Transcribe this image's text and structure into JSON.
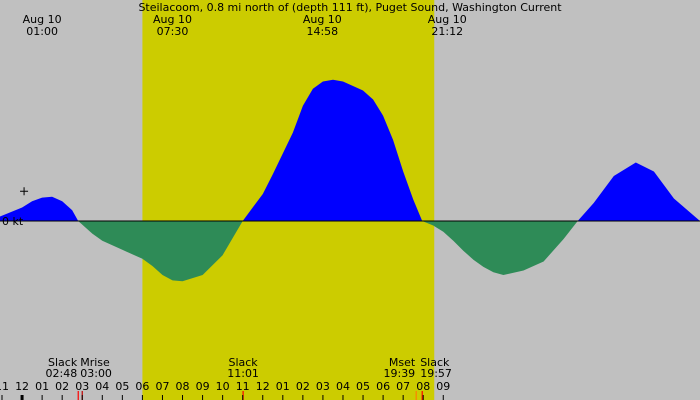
{
  "chart_data": {
    "type": "area",
    "title": "Steilacoom, 0.8 mi north of (depth 111 ft), Puget Sound, Washington Current",
    "ylabel": "0 kt",
    "x_range_hours": [
      -1.1,
      33.8
    ],
    "daylight_hours": [
      6.0,
      20.55
    ],
    "series": [
      {
        "values_hours": [
          -1.1,
          0.0,
          0.5,
          1.0,
          1.5,
          2.0,
          2.5,
          2.8,
          3.5,
          4.0,
          5.0,
          6.0,
          6.5,
          7.0,
          7.5,
          8.0,
          9.0,
          10.0,
          11.0,
          11.5,
          12.0,
          12.5,
          13.0,
          13.5,
          14.0,
          14.5,
          15.0,
          15.5,
          16.0,
          16.5,
          17.0,
          17.5,
          18.0,
          18.5,
          19.0,
          19.5,
          19.95,
          20.5,
          21.0,
          21.5,
          22.0,
          22.5,
          23.0,
          23.5,
          24.0,
          25.0,
          26.0,
          27.0,
          27.7,
          28.5,
          29.5,
          30.6,
          31.5,
          32.5,
          33.8
        ],
        "values": [
          0.05,
          0.15,
          0.22,
          0.26,
          0.27,
          0.22,
          0.12,
          0.0,
          -0.14,
          -0.22,
          -0.32,
          -0.42,
          -0.5,
          -0.6,
          -0.66,
          -0.67,
          -0.6,
          -0.38,
          0.0,
          0.15,
          0.3,
          0.52,
          0.75,
          0.98,
          1.28,
          1.47,
          1.55,
          1.57,
          1.55,
          1.5,
          1.45,
          1.35,
          1.17,
          0.9,
          0.55,
          0.24,
          0.0,
          -0.05,
          -0.12,
          -0.22,
          -0.33,
          -0.43,
          -0.51,
          -0.57,
          -0.6,
          -0.55,
          -0.45,
          -0.2,
          0.0,
          0.2,
          0.5,
          0.65,
          0.55,
          0.25,
          0.0
        ]
      }
    ],
    "top_labels": [
      {
        "hour": 1.0,
        "date": "Aug 10",
        "time": "01:00"
      },
      {
        "hour": 7.5,
        "date": "Aug 10",
        "time": "07:30"
      },
      {
        "hour": 14.97,
        "date": "Aug 10",
        "time": "14:58"
      },
      {
        "hour": 21.2,
        "date": "Aug 10",
        "time": "21:12"
      }
    ],
    "events": [
      {
        "hour": 2.8,
        "name": "Slack",
        "time": "02:48",
        "color": "#ff0000"
      },
      {
        "hour": 3.0,
        "name": "Mrise",
        "time": "03:00",
        "color": "#c00000"
      },
      {
        "hour": 11.02,
        "name": "Slack",
        "time": "11:01",
        "color": "#ff0000"
      },
      {
        "hour": 19.65,
        "name": "Mset",
        "time": "19:39",
        "color": "#ff8000"
      },
      {
        "hour": 19.95,
        "name": "Slack",
        "time": "19:57",
        "color": "#ff0000"
      }
    ],
    "x_ticks": [
      {
        "hour": -1.0,
        "label": "11"
      },
      {
        "hour": 0.0,
        "label": "12"
      },
      {
        "hour": 1.0,
        "label": "01"
      },
      {
        "hour": 2.0,
        "label": "02"
      },
      {
        "hour": 3.0,
        "label": "03"
      },
      {
        "hour": 4.0,
        "label": "04"
      },
      {
        "hour": 5.0,
        "label": "05"
      },
      {
        "hour": 6.0,
        "label": "06"
      },
      {
        "hour": 7.0,
        "label": "07"
      },
      {
        "hour": 8.0,
        "label": "08"
      },
      {
        "hour": 9.0,
        "label": "09"
      },
      {
        "hour": 10.0,
        "label": "10"
      },
      {
        "hour": 11.0,
        "label": "11"
      },
      {
        "hour": 12.0,
        "label": "12"
      },
      {
        "hour": 13.0,
        "label": "01"
      },
      {
        "hour": 14.0,
        "label": "02"
      },
      {
        "hour": 15.0,
        "label": "03"
      },
      {
        "hour": 16.0,
        "label": "04"
      },
      {
        "hour": 17.0,
        "label": "05"
      },
      {
        "hour": 18.0,
        "label": "06"
      },
      {
        "hour": 19.0,
        "label": "07"
      },
      {
        "hour": 20.0,
        "label": "08"
      },
      {
        "hour": 21.0,
        "label": "09"
      }
    ],
    "colors": {
      "background_night": "#c0c0c0",
      "background_day": "#cccc00",
      "flood": "#0000ff",
      "ebb": "#2e8b57"
    }
  }
}
